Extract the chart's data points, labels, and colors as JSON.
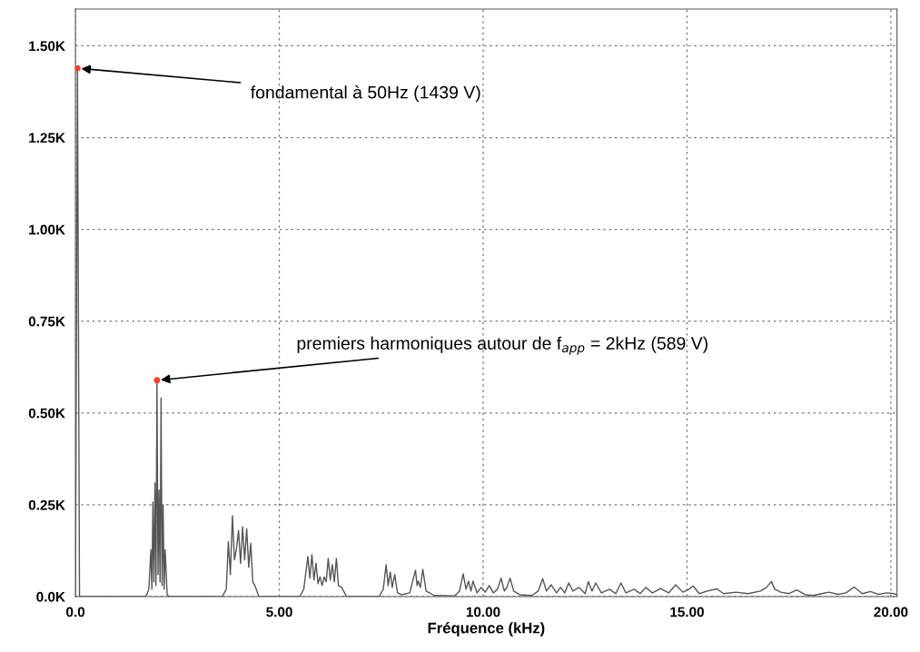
{
  "chart_data": {
    "type": "line",
    "xlabel": "Fréquence (kHz)",
    "x": [
      0,
      0.05,
      0.1,
      1.7,
      1.75,
      1.8,
      1.85,
      1.875,
      1.9,
      1.925,
      1.95,
      1.975,
      2.0,
      2.025,
      2.05,
      2.075,
      2.1,
      2.125,
      2.15,
      2.175,
      2.2,
      2.25,
      2.3,
      3.6,
      3.7,
      3.75,
      3.8,
      3.85,
      3.9,
      3.95,
      4.0,
      4.05,
      4.1,
      4.15,
      4.2,
      4.25,
      4.3,
      4.35,
      4.4,
      4.5,
      5.5,
      5.6,
      5.7,
      5.75,
      5.8,
      5.85,
      5.9,
      5.95,
      6.0,
      6.05,
      6.1,
      6.15,
      6.2,
      6.25,
      6.3,
      6.35,
      6.4,
      6.45,
      6.53,
      6.65,
      7.45,
      7.55,
      7.62,
      7.67,
      7.72,
      7.77,
      7.83,
      7.9,
      8.0,
      8.2,
      8.34,
      8.38,
      8.41,
      8.46,
      8.52,
      8.6,
      8.8,
      9.3,
      9.42,
      9.51,
      9.58,
      9.64,
      9.7,
      9.75,
      9.85,
      9.95,
      10.05,
      10.15,
      10.25,
      10.35,
      10.44,
      10.52,
      10.58,
      10.66,
      10.75,
      10.9,
      11.2,
      11.35,
      11.46,
      11.55,
      11.67,
      11.8,
      11.9,
      12.0,
      12.1,
      12.2,
      12.35,
      12.5,
      12.58,
      12.67,
      12.76,
      12.9,
      13.1,
      13.25,
      13.38,
      13.5,
      13.7,
      13.85,
      13.99,
      14.15,
      14.35,
      14.55,
      14.72,
      14.9,
      15.05,
      15.15,
      15.3,
      15.5,
      15.73,
      15.9,
      16.2,
      16.5,
      16.8,
      16.95,
      17.07,
      17.15,
      17.3,
      17.5,
      17.69,
      17.9,
      18.1,
      18.3,
      18.48,
      18.7,
      18.9,
      19.1,
      19.3,
      19.5,
      19.7,
      19.9,
      20.08,
      20.15
    ],
    "series": [
      {
        "color": "#555555",
        "values": [
          0,
          1439,
          0,
          0,
          5,
          20,
          128,
          20,
          257,
          40,
          310,
          30,
          589,
          60,
          290,
          40,
          541,
          30,
          250,
          20,
          128,
          5,
          0,
          0,
          20,
          150,
          60,
          220,
          100,
          130,
          180,
          90,
          190,
          100,
          185,
          80,
          145,
          40,
          30,
          0,
          0,
          20,
          109,
          50,
          114,
          45,
          91,
          35,
          54,
          30,
          54,
          40,
          104,
          45,
          87,
          40,
          104,
          30,
          25,
          0,
          0,
          20,
          87,
          30,
          67,
          25,
          60,
          10,
          5,
          10,
          72,
          30,
          42,
          25,
          74,
          15,
          3,
          2,
          15,
          62,
          20,
          42,
          15,
          42,
          10,
          25,
          12,
          30,
          10,
          20,
          50,
          15,
          25,
          50,
          15,
          5,
          3,
          15,
          49,
          15,
          32,
          10,
          25,
          10,
          37,
          15,
          25,
          8,
          41,
          15,
          37,
          10,
          20,
          8,
          37,
          10,
          20,
          8,
          25,
          10,
          22,
          10,
          32,
          12,
          20,
          29,
          8,
          15,
          21,
          8,
          12,
          8,
          15,
          25,
          41,
          20,
          12,
          8,
          18,
          5,
          3,
          8,
          12,
          6,
          10,
          26,
          8,
          14,
          6,
          10,
          8,
          4
        ]
      }
    ],
    "xlim": [
      0,
      20.15
    ],
    "ylim": [
      0,
      1600
    ],
    "xticks": [
      {
        "value": 0,
        "label": "0.0"
      },
      {
        "value": 5,
        "label": "5.00"
      },
      {
        "value": 10,
        "label": "10.00"
      },
      {
        "value": 15,
        "label": "15.00"
      },
      {
        "value": 20,
        "label": "20.00"
      }
    ],
    "yticks": [
      {
        "value": 0,
        "label": "0.0K"
      },
      {
        "value": 250,
        "label": "0.25K"
      },
      {
        "value": 500,
        "label": "0.50K"
      },
      {
        "value": 750,
        "label": "0.75K"
      },
      {
        "value": 1000,
        "label": "1.00K"
      },
      {
        "value": 1250,
        "label": "1.25K"
      },
      {
        "value": 1500,
        "label": "1.50K"
      }
    ],
    "grid": true,
    "marker": "none",
    "line_style": "solid",
    "annotations": [
      {
        "text": "fondamental à 50Hz (1439 V)",
        "x": 0.05,
        "y": 1439
      },
      {
        "text": "premiers harmoniques autour de f$_{app}$ = 2kHz (589 V)",
        "x": 2.0,
        "y": 589
      }
    ]
  }
}
